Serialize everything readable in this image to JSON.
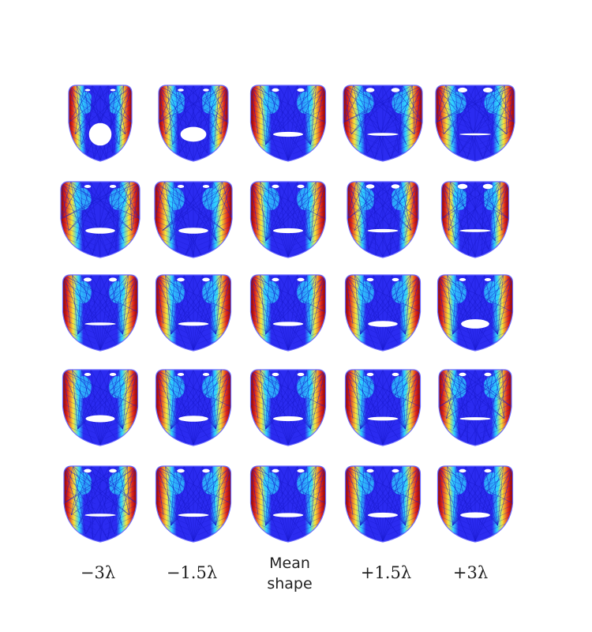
{
  "columns": [
    {
      "label": "−3λ"
    },
    {
      "label": "−1.5λ"
    },
    {
      "label": "Mean\nshape"
    },
    {
      "label": "+1.5λ"
    },
    {
      "label": "+3λ"
    }
  ],
  "grid": {
    "rows": 5,
    "cols": 5,
    "cells": [
      [
        {
          "mouth_open": 0.95,
          "width": 0.8,
          "eyes": 0.1
        },
        {
          "mouth_open": 0.6,
          "width": 0.88,
          "eyes": 0.2
        },
        {
          "mouth_open": 0.15,
          "width": 0.95,
          "eyes": 0.4
        },
        {
          "mouth_open": 0.05,
          "width": 1.0,
          "eyes": 0.6
        },
        {
          "mouth_open": 0.02,
          "width": 1.0,
          "eyes": 0.75
        }
      ],
      [
        {
          "mouth_open": 0.2,
          "width": 1.0,
          "eyes": 0.3
        },
        {
          "mouth_open": 0.2,
          "width": 0.98,
          "eyes": 0.3
        },
        {
          "mouth_open": 0.15,
          "width": 0.95,
          "eyes": 0.4
        },
        {
          "mouth_open": 0.08,
          "width": 0.9,
          "eyes": 0.6
        },
        {
          "mouth_open": 0.05,
          "width": 0.85,
          "eyes": 0.8
        }
      ],
      [
        {
          "mouth_open": 0.05,
          "width": 0.95,
          "eyes": 0.5
        },
        {
          "mouth_open": 0.1,
          "width": 0.95,
          "eyes": 0.45
        },
        {
          "mouth_open": 0.12,
          "width": 0.95,
          "eyes": 0.4
        },
        {
          "mouth_open": 0.2,
          "width": 0.95,
          "eyes": 0.35
        },
        {
          "mouth_open": 0.35,
          "width": 0.95,
          "eyes": 0.3
        }
      ],
      [
        {
          "mouth_open": 0.25,
          "width": 0.95,
          "eyes": 0.3
        },
        {
          "mouth_open": 0.2,
          "width": 0.95,
          "eyes": 0.3
        },
        {
          "mouth_open": 0.15,
          "width": 0.95,
          "eyes": 0.35
        },
        {
          "mouth_open": 0.1,
          "width": 0.95,
          "eyes": 0.35
        },
        {
          "mouth_open": 0.06,
          "width": 0.92,
          "eyes": 0.4
        }
      ],
      [
        {
          "mouth_open": 0.05,
          "width": 0.92,
          "eyes": 0.45
        },
        {
          "mouth_open": 0.08,
          "width": 0.95,
          "eyes": 0.45
        },
        {
          "mouth_open": 0.12,
          "width": 0.95,
          "eyes": 0.4
        },
        {
          "mouth_open": 0.15,
          "width": 0.95,
          "eyes": 0.4
        },
        {
          "mouth_open": 0.18,
          "width": 0.95,
          "eyes": 0.4
        }
      ]
    ]
  },
  "colors": {
    "background": "#ffffff",
    "mesh_blue": "#2b2bf0",
    "mesh_cyan": "#2fd3ff",
    "mesh_yellow": "#f7e53a",
    "mesh_red": "#e0261c",
    "mesh_dark_red": "#8a0000",
    "outline": "#6a6aff"
  }
}
